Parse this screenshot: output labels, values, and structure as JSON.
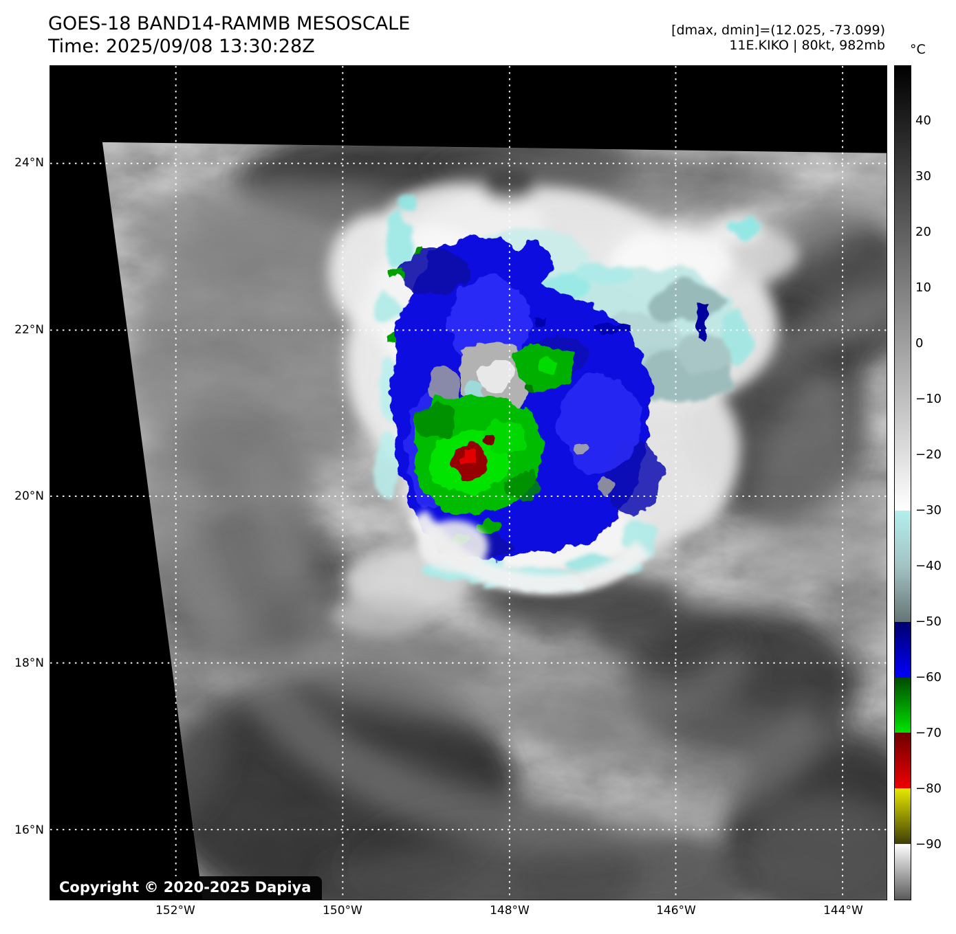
{
  "header": {
    "title": "GOES-18 BAND14-RAMMB MESOSCALE",
    "time": "Time: 2025/09/08 13:30:28Z",
    "range_line": "[dmax, dmin]=(12.025, -73.099)",
    "storm_line": "11E.KIKO | 80kt, 982mb"
  },
  "colorbar": {
    "unit": "°C",
    "scale_top_c": 50,
    "scale_bottom_c": -100,
    "ticks": [
      {
        "label": "40",
        "value": 40
      },
      {
        "label": "30",
        "value": 30
      },
      {
        "label": "20",
        "value": 20
      },
      {
        "label": "10",
        "value": 10
      },
      {
        "label": "0",
        "value": 0
      },
      {
        "label": "−10",
        "value": -10
      },
      {
        "label": "−20",
        "value": -20
      },
      {
        "label": "−30",
        "value": -30
      },
      {
        "label": "−40",
        "value": -40
      },
      {
        "label": "−50",
        "value": -50
      },
      {
        "label": "−60",
        "value": -60
      },
      {
        "label": "−70",
        "value": -70
      },
      {
        "label": "−80",
        "value": -80
      },
      {
        "label": "−90",
        "value": -90
      }
    ],
    "segments": [
      {
        "from": 50,
        "to": -30,
        "top": "#000000",
        "bottom": "#ffffff"
      },
      {
        "from": -30,
        "to": -40,
        "top": "#b2efed",
        "bottom": "#a3c2c2"
      },
      {
        "from": -40,
        "to": -50,
        "top": "#a3c2c2",
        "bottom": "#667474"
      },
      {
        "from": -50,
        "to": -60,
        "top": "#00006e",
        "bottom": "#0000fa"
      },
      {
        "from": -60,
        "to": -70,
        "top": "#004a00",
        "bottom": "#00e400"
      },
      {
        "from": -70,
        "to": -80,
        "top": "#6e0000",
        "bottom": "#ee0000"
      },
      {
        "from": -80,
        "to": -90,
        "top": "#e8e800",
        "bottom": "#3d3d08"
      },
      {
        "from": -90,
        "to": -100,
        "top": "#ffffff",
        "bottom": "#5a5a5a"
      }
    ]
  },
  "map": {
    "lat_labels": [
      "24°N",
      "22°N",
      "20°N",
      "18°N",
      "16°N"
    ],
    "lon_labels": [
      "152°W",
      "150°W",
      "148°W",
      "146°W",
      "144°W"
    ],
    "copyright": "Copyright © 2020-2025 Dapiya",
    "colors": {
      "no_data": "#000000",
      "gridline": "#ffffff",
      "cold_minus50s_blue": "#1111e0",
      "cold_minus60s_green": "#00bc00",
      "cold_minus70s_red": "#970000",
      "cirrus_cyan": "#aeeae7"
    }
  }
}
